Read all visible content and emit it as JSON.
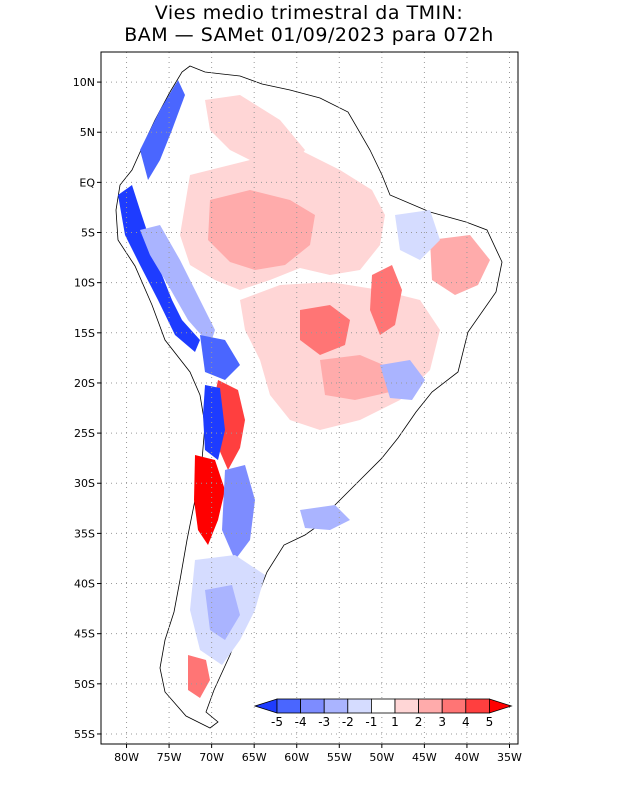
{
  "title": {
    "line1": "Vies medio trimestral da TMIN:",
    "line2": "BAM — SAMet 01/09/2023  para 072h"
  },
  "map": {
    "region": "South America",
    "lon_range": [
      -83,
      -34
    ],
    "lat_range": [
      -56,
      13
    ],
    "lat_ticks": [
      {
        "value": 10,
        "label": "10N"
      },
      {
        "value": 5,
        "label": "5N"
      },
      {
        "value": 0,
        "label": "EQ"
      },
      {
        "value": -5,
        "label": "5S"
      },
      {
        "value": -10,
        "label": "10S"
      },
      {
        "value": -15,
        "label": "15S"
      },
      {
        "value": -20,
        "label": "20S"
      },
      {
        "value": -25,
        "label": "25S"
      },
      {
        "value": -30,
        "label": "30S"
      },
      {
        "value": -35,
        "label": "35S"
      },
      {
        "value": -40,
        "label": "40S"
      },
      {
        "value": -45,
        "label": "45S"
      },
      {
        "value": -50,
        "label": "50S"
      },
      {
        "value": -55,
        "label": "55S"
      }
    ],
    "lon_ticks": [
      {
        "value": -80,
        "label": "80W"
      },
      {
        "value": -75,
        "label": "75W"
      },
      {
        "value": -70,
        "label": "70W"
      },
      {
        "value": -65,
        "label": "65W"
      },
      {
        "value": -60,
        "label": "60W"
      },
      {
        "value": -55,
        "label": "55W"
      },
      {
        "value": -50,
        "label": "50W"
      },
      {
        "value": -45,
        "label": "45W"
      },
      {
        "value": -40,
        "label": "40W"
      },
      {
        "value": -35,
        "label": "35W"
      }
    ]
  },
  "legend": {
    "labels": [
      "-5",
      "-4",
      "-3",
      "-2",
      "-1",
      "1",
      "2",
      "3",
      "4",
      "5"
    ],
    "colors": [
      "#1e3cff",
      "#4a66ff",
      "#7d8cff",
      "#aab4ff",
      "#d5dcff",
      "#ffffff",
      "#ffd6d6",
      "#ffabab",
      "#ff7575",
      "#ff3f3f",
      "#ff0000"
    ]
  },
  "colors": {
    "land_neutral": "#ffffff",
    "border": "#000000",
    "grid": "#9a9a9a"
  }
}
